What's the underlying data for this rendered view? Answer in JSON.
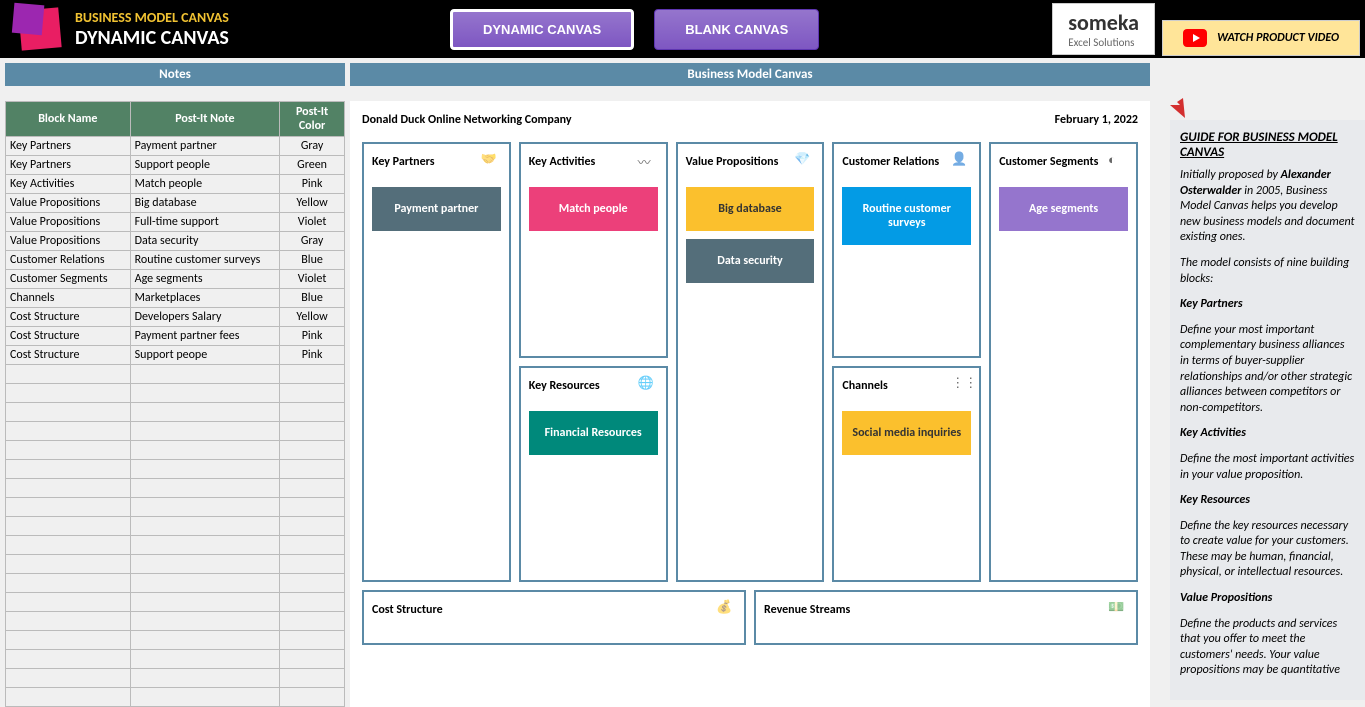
{
  "header": {
    "mainTitle": "BUSINESS MODEL CANVAS",
    "subTitle": "DYNAMIC CANVAS",
    "btn1": "DYNAMIC CANVAS",
    "btn2": "BLANK CANVAS",
    "somekaText": "someka",
    "somekaSub": "Excel Solutions",
    "watchVideo": "WATCH PRODUCT VIDEO"
  },
  "sections": {
    "notes": "Notes",
    "canvas": "Business Model Canvas"
  },
  "table": {
    "col1": "Block Name",
    "col2": "Post-It Note",
    "col3": "Post-It Color",
    "rows": [
      {
        "block": "Key Partners",
        "note": "Payment partner",
        "color": "Gray"
      },
      {
        "block": "Key Partners",
        "note": "Support people",
        "color": "Green"
      },
      {
        "block": "Key Activities",
        "note": "Match people",
        "color": "Pink"
      },
      {
        "block": "Value Propositions",
        "note": "Big database",
        "color": "Yellow"
      },
      {
        "block": "Value Propositions",
        "note": "Full-time support",
        "color": "Violet"
      },
      {
        "block": "Value Propositions",
        "note": "Data security",
        "color": "Gray"
      },
      {
        "block": "Customer Relations",
        "note": "Routine customer surveys",
        "color": "Blue"
      },
      {
        "block": "Customer Segments",
        "note": "Age segments",
        "color": "Violet"
      },
      {
        "block": "Channels",
        "note": "Marketplaces",
        "color": "Blue"
      },
      {
        "block": "Cost Structure",
        "note": "Developers Salary",
        "color": "Yellow"
      },
      {
        "block": "Cost Structure",
        "note": "Payment partner fees",
        "color": "Pink"
      },
      {
        "block": "Cost Structure",
        "note": "Support peope",
        "color": "Pink"
      }
    ]
  },
  "canvas": {
    "company": "Donald Duck Online Networking Company",
    "date": "February 1, 2022",
    "blocks": {
      "keyPartners": "Key Partners",
      "keyActivities": "Key Activities",
      "keyResources": "Key Resources",
      "valuePropositions": "Value Propositions",
      "customerRelations": "Customer Relations",
      "channels": "Channels",
      "customerSegments": "Customer Segments",
      "costStructure": "Cost Structure",
      "revenueStreams": "Revenue Streams"
    },
    "notes": {
      "paymentPartner": "Payment partner",
      "matchPeople": "Match people",
      "financialResources": "Financial Resources",
      "bigDatabase": "Big database",
      "dataSecurity": "Data security",
      "routineCustomer": "Routine customer surveys",
      "socialMedia": "Social media inquiries",
      "ageSegments": "Age segments"
    }
  },
  "guide": {
    "title": "GUIDE FOR BUSINESS MODEL CANVAS",
    "p1a": "Initially proposed by ",
    "p1b": "Alexander Osterwalder",
    "p1c": " in 2005, Business Model Canvas helps you develop new business models and document existing ones.",
    "p2": "The model consists of nine building blocks:",
    "h1": "Key Partners",
    "d1": "Define your most important complementary business alliances in terms of buyer-supplier relationships and/or other strategic alliances between competitors or non-competitors.",
    "h2": "Key Activities",
    "d2": "Define the most important activities in your value proposition.",
    "h3": "Key Resources",
    "d3": "Define the key resources necessary to create value for your customers. These may be human, financial, physical, or intellectual resources.",
    "h4": "Value Propositions",
    "d4": "Define the products and services that you offer to meet the customers' needs. Your value propositions may be quantitative"
  }
}
